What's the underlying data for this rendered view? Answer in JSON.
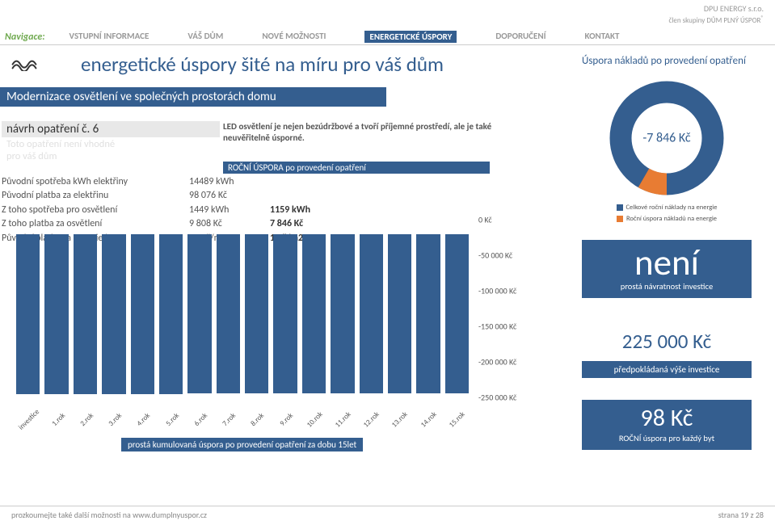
{
  "brand": {
    "name": "DPU ENERGY s.r.o.",
    "subline": "člen skupiny DŮM PLNÝ ÚSPOR",
    "reg": "®"
  },
  "nav": {
    "label": "Navigace:",
    "items": [
      "VSTUPNÍ INFORMACE",
      "VÁŠ DŮM",
      "NOVÉ MOŽNOSTI",
      "ENERGETICKÉ ÚSPORY",
      "DOPORUČENÍ",
      "KONTAKT"
    ],
    "active_index": 3
  },
  "headline": "energetické úspory šité na míru pro váš dům",
  "savings_title": "Úspora nákladů po provedení opatření",
  "section_banner": "Modernizace osvětlení ve společných prostorách domu",
  "proposal": {
    "number_label": "návrh opatření č. 6",
    "note_l1": "Toto opatření není vhodné",
    "note_l2": "pro váš dům",
    "description": "LED osvětlení je nejen bezúdržbové a tvoří příjemné prostředí, ale je také neuvěřitelně úsporné."
  },
  "savings_banner": "ROČNÍ ÚSPORA po provedení opatření",
  "data_rows": [
    {
      "label": "Původní spotřeba kWh elektřiny",
      "v1": "14489 kWh",
      "v2": ""
    },
    {
      "label": "Původní platba za elektřinu",
      "v1": "98 076 Kč",
      "v2": ""
    },
    {
      "label": "Z toho spotřeba pro osvětlení",
      "v1": "1449 kWh",
      "v2": "1159 kWh"
    },
    {
      "label": "Z toho platba za osvětlení",
      "v1": "9 808 Kč",
      "v2": "7 846 Kč"
    },
    {
      "label": "Původní platba za energie/m2",
      "v1": "30 Kč/m2",
      "v2": "1 Kč/m2"
    }
  ],
  "chart": {
    "type": "bar",
    "bar_color": "#345E8F",
    "background_color": "#ffffff",
    "ylim": [
      -250000,
      0
    ],
    "ytick_step": 50000,
    "ylabels": [
      "0 Kč",
      "-50 000 Kč",
      "-100 000 Kč",
      "-150 000 Kč",
      "-200 000 Kč",
      "-250 000 Kč"
    ],
    "categories": [
      "investice",
      "1.rok",
      "2.rok",
      "3.rok",
      "4.rok",
      "5.rok",
      "6.rok",
      "7.rok",
      "8.rok",
      "9.rok",
      "10.rok",
      "11.rok",
      "12.rok",
      "13.rok",
      "14.rok",
      "15.rok"
    ],
    "values": [
      -225000,
      -224902,
      -224804,
      -224706,
      -224608,
      -224510,
      -224412,
      -224314,
      -224216,
      -224118,
      -224020,
      -223922,
      -223824,
      -223726,
      -223628,
      -223530
    ],
    "caption": "prostá kumulovaná úspora po provedení opatření za dobu 15let"
  },
  "donut": {
    "center_value": "-7 846 Kč",
    "ring_color": "#345E8F",
    "slice_color": "#E87C33",
    "slice_start_deg": 180,
    "slice_end_deg": 210,
    "stroke_width": 18,
    "legend": [
      {
        "color": "#345E8F",
        "label": "Celkové roční náklady na energie"
      },
      {
        "color": "#E87C33",
        "label": "Roční úspora nákladů na energie"
      }
    ]
  },
  "stats": {
    "payback": {
      "value": "není",
      "label": "prostá návratnost investice"
    },
    "investment": {
      "value": "225 000 Kč",
      "label": "předpokládaná výše investice"
    },
    "annual": {
      "value": "98 Kč",
      "label": "ROČNÍ úspora pro každý byt"
    }
  },
  "footer": {
    "left": "prozkoumejte také další možnosti na www.dumplnyuspor.cz",
    "right": "strana 19 z 28"
  },
  "colors": {
    "primary": "#345E8F",
    "accent": "#E87C33",
    "muted": "#999999"
  }
}
